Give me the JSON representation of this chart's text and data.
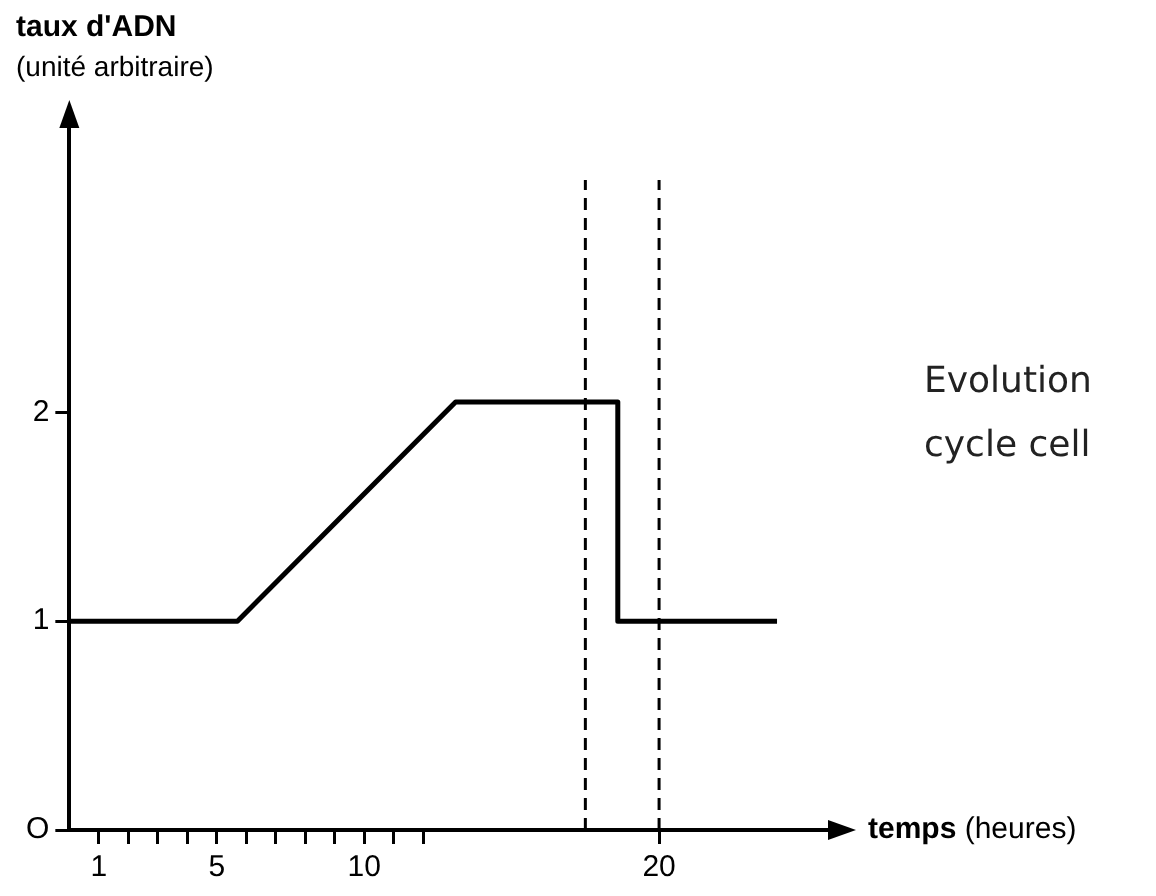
{
  "chart_data": {
    "type": "line",
    "ylabel": "taux d'ADN\n(unité arbitraire)",
    "xlabel": "temps (heures)",
    "annotations": [
      "Evolution",
      "cycle cell"
    ],
    "series": [
      {
        "color": "#000000",
        "x": [
          0,
          5.7,
          13.1,
          18.6,
          18.6,
          24
        ],
        "values": [
          1,
          1,
          2.05,
          2.05,
          1,
          1
        ]
      }
    ],
    "xlim": [
      0,
      26
    ],
    "ylim": [
      0,
      3.4
    ],
    "xticks": [
      1,
      {
        "value": 2,
        "label": null
      },
      {
        "value": 3,
        "label": null
      },
      {
        "value": 4,
        "label": null
      },
      5,
      {
        "value": 6,
        "label": null
      },
      {
        "value": 7,
        "label": null
      },
      {
        "value": 8,
        "label": null
      },
      {
        "value": 9,
        "label": null
      },
      10,
      {
        "value": 11,
        "label": null
      },
      {
        "value": 12,
        "label": null
      },
      20
    ],
    "yticks": [
      {
        "value": 0,
        "label": "O"
      },
      1,
      2
    ],
    "ref_lines": [
      {
        "axis": "x",
        "value": 17.5,
        "color": "#000000",
        "line_style": "dashed"
      },
      {
        "axis": "x",
        "value": 20,
        "color": "#000000",
        "line_style": "dashed"
      }
    ],
    "grid": false,
    "legend": false,
    "marker": "none",
    "line_style": "solid"
  }
}
